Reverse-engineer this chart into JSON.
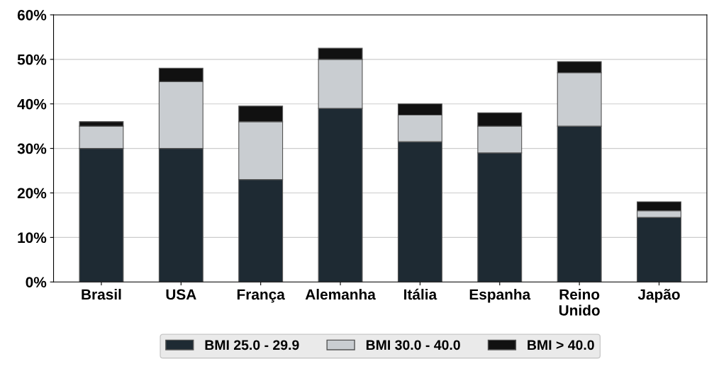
{
  "chart_data": {
    "type": "bar",
    "stacked": true,
    "categories": [
      "Brasil",
      "USA",
      "França",
      "Alemanha",
      "Itália",
      "Espanha",
      "Reino\nUnido",
      "Japão"
    ],
    "series": [
      {
        "name": "BMI 25.0 - 29.9",
        "color": "#1e2a33",
        "values": [
          30,
          30,
          23,
          39,
          31.5,
          29,
          35,
          14.5
        ]
      },
      {
        "name": "BMI 30.0 - 40.0",
        "color": "#c9cdd1",
        "values": [
          5,
          15,
          13,
          11,
          6,
          6,
          12,
          1.5
        ]
      },
      {
        "name": "BMI > 40.0",
        "color": "#111111",
        "values": [
          1,
          3,
          3.5,
          2.5,
          2.5,
          3,
          2.5,
          2
        ]
      }
    ],
    "ylim": [
      0,
      60
    ],
    "yticks": [
      {
        "value": 0,
        "label": "0%"
      },
      {
        "value": 10,
        "label": "10%"
      },
      {
        "value": 20,
        "label": "20%"
      },
      {
        "value": 30,
        "label": "30%"
      },
      {
        "value": 40,
        "label": "40%"
      },
      {
        "value": 50,
        "label": "50%"
      },
      {
        "value": 60,
        "label": "60%"
      }
    ],
    "grid": "y",
    "legend": "bottom"
  }
}
